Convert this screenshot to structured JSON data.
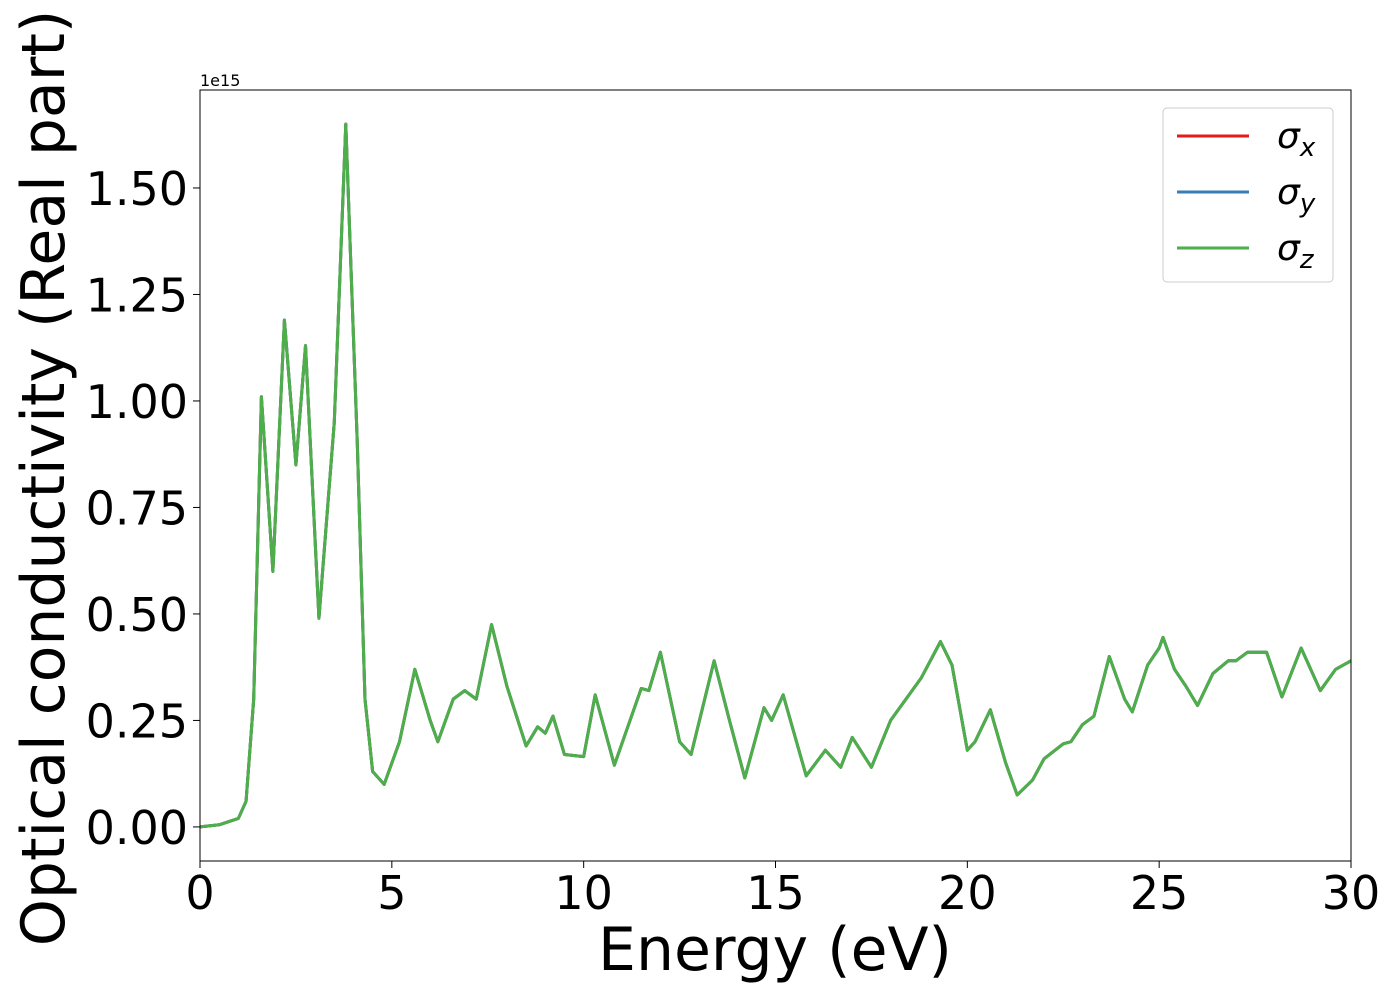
{
  "chart_data": {
    "type": "line",
    "xlabel": "Energy (eV)",
    "ylabel": "Optical conductivity (Real part)",
    "y_offset_label": "1e15",
    "x": [
      0,
      0.5,
      1.0,
      1.2,
      1.4,
      1.6,
      1.9,
      2.2,
      2.5,
      2.75,
      3.1,
      3.5,
      3.8,
      4.1,
      4.3,
      4.5,
      4.8,
      5.2,
      5.6,
      6.0,
      6.2,
      6.6,
      6.9,
      7.2,
      7.6,
      8.0,
      8.5,
      8.8,
      9.0,
      9.2,
      9.5,
      10.0,
      10.3,
      10.8,
      11.5,
      11.7,
      12.0,
      12.5,
      12.8,
      13.4,
      13.8,
      14.2,
      14.7,
      14.9,
      15.2,
      15.8,
      16.3,
      16.7,
      17.0,
      17.5,
      18.0,
      18.4,
      18.8,
      19.3,
      19.6,
      20.0,
      20.2,
      20.6,
      21.0,
      21.3,
      21.7,
      22.0,
      22.5,
      22.7,
      23.0,
      23.3,
      23.7,
      24.1,
      24.3,
      24.7,
      25.0,
      25.1,
      25.4,
      25.7,
      26.0,
      26.4,
      26.8,
      27.0,
      27.3,
      27.8,
      28.2,
      28.7,
      29.2,
      29.6,
      30
    ],
    "series": [
      {
        "name": "σx",
        "color": "#e41a1c",
        "values": [
          0,
          0.005,
          0.02,
          0.06,
          0.3,
          1.01,
          0.6,
          1.19,
          0.85,
          1.13,
          0.49,
          0.95,
          1.65,
          0.9,
          0.3,
          0.13,
          0.1,
          0.2,
          0.37,
          0.25,
          0.2,
          0.3,
          0.32,
          0.3,
          0.475,
          0.33,
          0.19,
          0.235,
          0.22,
          0.26,
          0.17,
          0.165,
          0.31,
          0.145,
          0.325,
          0.32,
          0.41,
          0.2,
          0.17,
          0.39,
          0.25,
          0.115,
          0.28,
          0.25,
          0.31,
          0.12,
          0.18,
          0.14,
          0.21,
          0.14,
          0.25,
          0.3,
          0.35,
          0.435,
          0.38,
          0.18,
          0.2,
          0.275,
          0.15,
          0.075,
          0.11,
          0.16,
          0.195,
          0.2,
          0.24,
          0.26,
          0.4,
          0.3,
          0.27,
          0.38,
          0.42,
          0.445,
          0.37,
          0.33,
          0.285,
          0.36,
          0.39,
          0.39,
          0.41,
          0.41,
          0.305,
          0.42,
          0.32,
          0.37,
          0.39
        ]
      },
      {
        "name": "σy",
        "color": "#377eb8",
        "values": [
          0,
          0.005,
          0.02,
          0.06,
          0.3,
          1.01,
          0.6,
          1.19,
          0.85,
          1.13,
          0.49,
          0.95,
          1.65,
          0.9,
          0.3,
          0.13,
          0.1,
          0.2,
          0.37,
          0.25,
          0.2,
          0.3,
          0.32,
          0.3,
          0.475,
          0.33,
          0.19,
          0.235,
          0.22,
          0.26,
          0.17,
          0.165,
          0.31,
          0.145,
          0.325,
          0.32,
          0.41,
          0.2,
          0.17,
          0.39,
          0.25,
          0.115,
          0.28,
          0.25,
          0.31,
          0.12,
          0.18,
          0.14,
          0.21,
          0.14,
          0.25,
          0.3,
          0.35,
          0.435,
          0.38,
          0.18,
          0.2,
          0.275,
          0.15,
          0.075,
          0.11,
          0.16,
          0.195,
          0.2,
          0.24,
          0.26,
          0.4,
          0.3,
          0.27,
          0.38,
          0.42,
          0.445,
          0.37,
          0.33,
          0.285,
          0.36,
          0.39,
          0.39,
          0.41,
          0.41,
          0.305,
          0.42,
          0.32,
          0.37,
          0.39
        ]
      },
      {
        "name": "σz",
        "color": "#4daf4a",
        "values": [
          0,
          0.005,
          0.02,
          0.06,
          0.3,
          1.01,
          0.6,
          1.19,
          0.85,
          1.13,
          0.49,
          0.95,
          1.65,
          0.9,
          0.3,
          0.13,
          0.1,
          0.2,
          0.37,
          0.25,
          0.2,
          0.3,
          0.32,
          0.3,
          0.475,
          0.33,
          0.19,
          0.235,
          0.22,
          0.26,
          0.17,
          0.165,
          0.31,
          0.145,
          0.325,
          0.32,
          0.41,
          0.2,
          0.17,
          0.39,
          0.25,
          0.115,
          0.28,
          0.25,
          0.31,
          0.12,
          0.18,
          0.14,
          0.21,
          0.14,
          0.25,
          0.3,
          0.35,
          0.435,
          0.38,
          0.18,
          0.2,
          0.275,
          0.15,
          0.075,
          0.11,
          0.16,
          0.195,
          0.2,
          0.24,
          0.26,
          0.4,
          0.3,
          0.27,
          0.38,
          0.42,
          0.445,
          0.37,
          0.33,
          0.285,
          0.36,
          0.39,
          0.39,
          0.41,
          0.41,
          0.305,
          0.42,
          0.32,
          0.37,
          0.39
        ]
      }
    ],
    "xlim": [
      0,
      30
    ],
    "xticks": [
      0,
      5,
      10,
      15,
      20,
      25,
      30
    ],
    "ylim": [
      -0.08,
      1.73
    ],
    "yticks": [
      {
        "value": 0,
        "label": "0.00"
      },
      {
        "value": 0.25,
        "label": "0.25"
      },
      {
        "value": 0.5,
        "label": "0.50"
      },
      {
        "value": 0.75,
        "label": "0.75"
      },
      {
        "value": 1.0,
        "label": "1.00"
      },
      {
        "value": 1.25,
        "label": "1.25"
      },
      {
        "value": 1.5,
        "label": "1.50"
      }
    ],
    "grid": false,
    "legend": "upper right"
  }
}
